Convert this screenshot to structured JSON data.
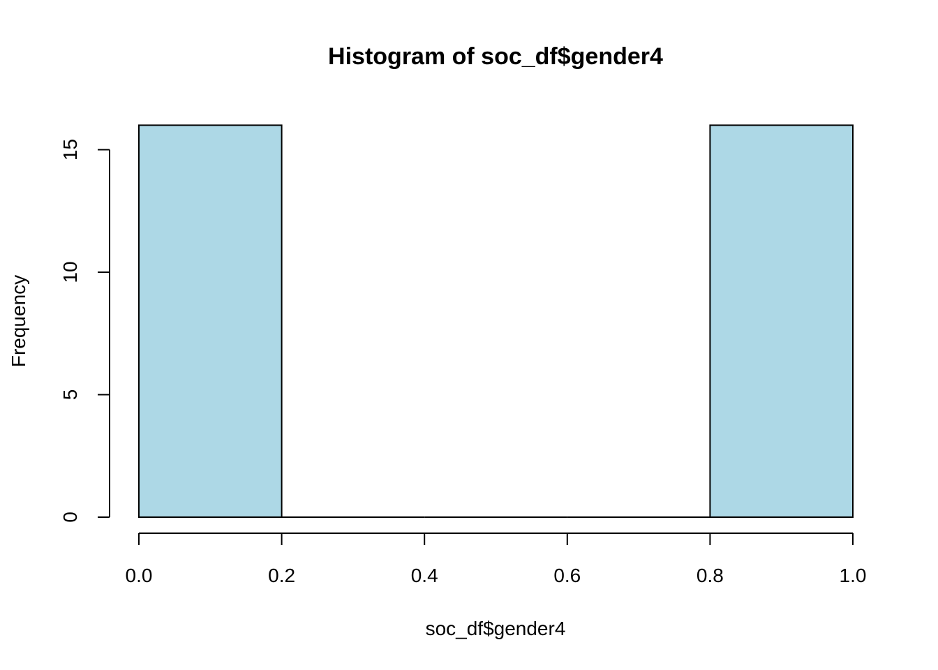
{
  "chart_data": {
    "type": "bar",
    "subtype": "histogram",
    "title": "Histogram of soc_df$gender4",
    "xlabel": "soc_df$gender4",
    "ylabel": "Frequency",
    "bins": [
      {
        "from": 0.0,
        "to": 0.2,
        "count": 16
      },
      {
        "from": 0.2,
        "to": 0.4,
        "count": 0
      },
      {
        "from": 0.4,
        "to": 0.6,
        "count": 0
      },
      {
        "from": 0.6,
        "to": 0.8,
        "count": 0
      },
      {
        "from": 0.8,
        "to": 1.0,
        "count": 16
      }
    ],
    "xlim": [
      0.0,
      1.0
    ],
    "ylim": [
      0,
      16
    ],
    "x_ticks": [
      {
        "value": 0.0,
        "label": "0.0"
      },
      {
        "value": 0.2,
        "label": "0.2"
      },
      {
        "value": 0.4,
        "label": "0.4"
      },
      {
        "value": 0.6,
        "label": "0.6"
      },
      {
        "value": 0.8,
        "label": "0.8"
      },
      {
        "value": 1.0,
        "label": "1.0"
      }
    ],
    "y_ticks": [
      {
        "value": 0,
        "label": "0"
      },
      {
        "value": 5,
        "label": "5"
      },
      {
        "value": 10,
        "label": "10"
      },
      {
        "value": 15,
        "label": "15"
      }
    ],
    "bar_color": "#add8e6",
    "border_color": "#000000",
    "grid": false,
    "legend": "none"
  }
}
